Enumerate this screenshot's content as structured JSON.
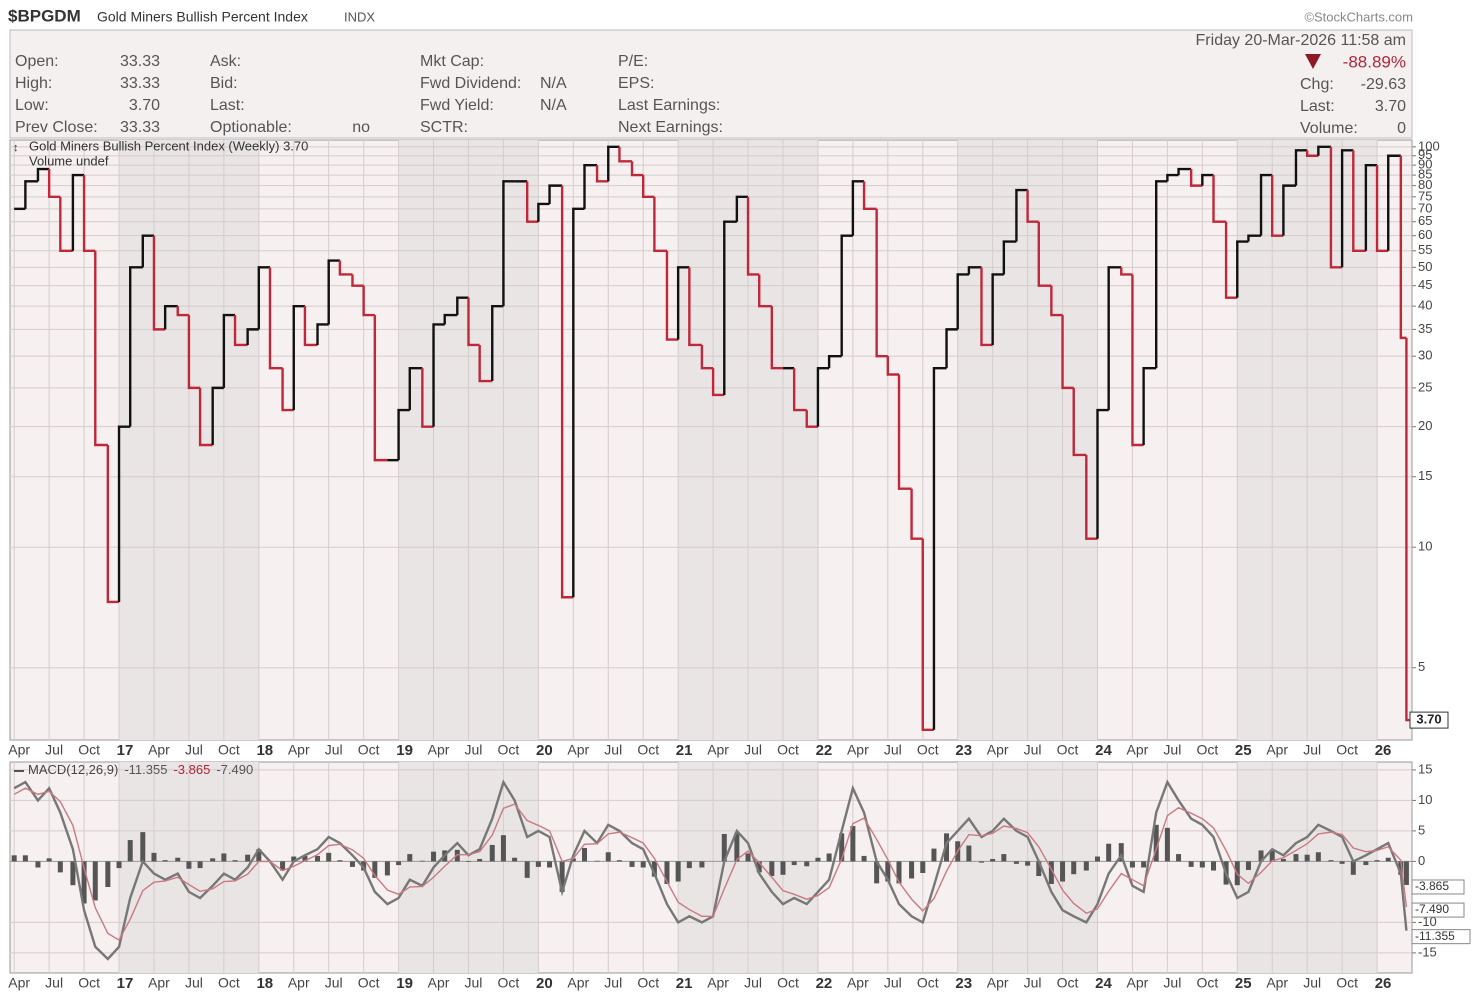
{
  "header": {
    "symbol": "$BPGDM",
    "name": "Gold Miners Bullish Percent Index",
    "exchange": "INDX",
    "source": "©StockCharts.com"
  },
  "quote": {
    "columns": [
      [
        [
          "Open:",
          "33.33"
        ],
        [
          "High:",
          "33.33"
        ],
        [
          "Low:",
          "3.70"
        ],
        [
          "Prev Close:",
          "33.33"
        ]
      ],
      [
        [
          "Ask:"
        ],
        [
          "Bid:"
        ],
        [
          "Last:"
        ],
        [
          "Optionable:",
          "no"
        ]
      ],
      [
        [
          "Mkt Cap:"
        ],
        [
          "Fwd Dividend:",
          "N/A"
        ],
        [
          "Fwd Yield:",
          "N/A"
        ],
        [
          "SCTR:"
        ]
      ],
      [
        [
          "P/E:"
        ],
        [
          "EPS:"
        ],
        [
          "Last Earnings:"
        ],
        [
          "Next Earnings:"
        ]
      ]
    ],
    "date": "Friday  20-Mar-2026  11:58 am",
    "change_pct": "-88.89%",
    "stats": [
      [
        "Chg:",
        "-29.63"
      ],
      [
        "Last:",
        "3.70"
      ],
      [
        "Volume:",
        "0"
      ]
    ]
  },
  "chart_data": [
    {
      "type": "step-line",
      "volume_label": "Volume undef",
      "log_scale": true,
      "grid": true,
      "price_tag": "3.70",
      "x": [
        2016.25,
        2016.33,
        2016.42,
        2016.5,
        2016.58,
        2016.67,
        2016.75,
        2016.83,
        2016.92,
        2017.0,
        2017.08,
        2017.17,
        2017.25,
        2017.33,
        2017.42,
        2017.5,
        2017.58,
        2017.67,
        2017.75,
        2017.83,
        2017.92,
        2018.0,
        2018.08,
        2018.17,
        2018.25,
        2018.33,
        2018.42,
        2018.5,
        2018.58,
        2018.67,
        2018.75,
        2018.83,
        2018.92,
        2019.0,
        2019.08,
        2019.17,
        2019.25,
        2019.33,
        2019.42,
        2019.5,
        2019.58,
        2019.67,
        2019.75,
        2019.83,
        2019.92,
        2020.0,
        2020.08,
        2020.17,
        2020.25,
        2020.33,
        2020.42,
        2020.5,
        2020.58,
        2020.67,
        2020.75,
        2020.83,
        2020.92,
        2021.0,
        2021.08,
        2021.17,
        2021.25,
        2021.33,
        2021.42,
        2021.5,
        2021.58,
        2021.67,
        2021.75,
        2021.83,
        2021.92,
        2022.0,
        2022.08,
        2022.17,
        2022.25,
        2022.33,
        2022.42,
        2022.5,
        2022.58,
        2022.67,
        2022.75,
        2022.83,
        2022.92,
        2023.0,
        2023.08,
        2023.17,
        2023.25,
        2023.33,
        2023.42,
        2023.5,
        2023.58,
        2023.67,
        2023.75,
        2023.83,
        2023.92,
        2024.0,
        2024.08,
        2024.17,
        2024.25,
        2024.33,
        2024.42,
        2024.5,
        2024.58,
        2024.67,
        2024.75,
        2024.83,
        2024.92,
        2025.0,
        2025.08,
        2025.17,
        2025.25,
        2025.33,
        2025.42,
        2025.5,
        2025.58,
        2025.67,
        2025.75,
        2025.83,
        2025.92,
        2026.0,
        2026.08,
        2026.17,
        2026.21
      ],
      "series": [
        {
          "name": "Gold Miners Bullish Percent Index (Weekly) 3.70",
          "up_color": "#111111",
          "down_color": "#c0283a",
          "values": [
            70,
            82,
            88,
            75,
            55,
            85,
            55,
            18,
            7.3,
            20,
            50,
            60,
            35,
            40,
            38,
            25,
            18,
            25,
            38,
            32,
            35,
            50,
            28,
            22,
            40,
            32,
            36,
            52,
            48,
            45,
            38,
            16.5,
            16.5,
            22,
            28,
            20,
            36,
            38,
            42,
            32,
            26,
            40,
            82,
            82,
            65,
            72,
            80,
            7.5,
            70,
            90,
            82,
            100,
            92,
            85,
            75,
            55,
            33,
            50,
            32,
            28,
            24,
            65,
            75,
            48,
            40,
            28,
            28,
            22,
            20,
            28,
            30,
            60,
            82,
            70,
            30,
            27,
            14,
            10.5,
            3.5,
            28,
            35,
            48,
            50,
            32,
            48,
            58,
            78,
            65,
            45,
            38,
            25,
            17,
            10.5,
            22,
            50,
            48,
            18,
            28,
            82,
            85,
            88,
            80,
            85,
            65,
            42,
            58,
            60,
            85,
            60,
            80,
            98,
            95,
            100,
            50,
            98,
            55,
            90,
            55,
            95,
            33.33,
            3.7
          ]
        }
      ],
      "xlim": [
        2016.22,
        2026.25
      ],
      "ylim": [
        3.3,
        104
      ],
      "yticks": [
        5,
        10,
        15,
        20,
        25,
        30,
        35,
        40,
        45,
        50,
        55,
        60,
        65,
        70,
        75,
        80,
        85,
        90,
        95,
        100
      ],
      "xticks": [
        {
          "value": 2016.25,
          "label": "Apr"
        },
        {
          "value": 2016.5,
          "label": "Jul"
        },
        {
          "value": 2016.75,
          "label": "Oct"
        },
        {
          "value": 2017,
          "label": "17"
        },
        {
          "value": 2017.25,
          "label": "Apr"
        },
        {
          "value": 2017.5,
          "label": "Jul"
        },
        {
          "value": 2017.75,
          "label": "Oct"
        },
        {
          "value": 2018,
          "label": "18"
        },
        {
          "value": 2018.25,
          "label": "Apr"
        },
        {
          "value": 2018.5,
          "label": "Jul"
        },
        {
          "value": 2018.75,
          "label": "Oct"
        },
        {
          "value": 2019,
          "label": "19"
        },
        {
          "value": 2019.25,
          "label": "Apr"
        },
        {
          "value": 2019.5,
          "label": "Jul"
        },
        {
          "value": 2019.75,
          "label": "Oct"
        },
        {
          "value": 2020,
          "label": "20"
        },
        {
          "value": 2020.25,
          "label": "Apr"
        },
        {
          "value": 2020.5,
          "label": "Jul"
        },
        {
          "value": 2020.75,
          "label": "Oct"
        },
        {
          "value": 2021,
          "label": "21"
        },
        {
          "value": 2021.25,
          "label": "Apr"
        },
        {
          "value": 2021.5,
          "label": "Jul"
        },
        {
          "value": 2021.75,
          "label": "Oct"
        },
        {
          "value": 2022,
          "label": "22"
        },
        {
          "value": 2022.25,
          "label": "Apr"
        },
        {
          "value": 2022.5,
          "label": "Jul"
        },
        {
          "value": 2022.75,
          "label": "Oct"
        },
        {
          "value": 2023,
          "label": "23"
        },
        {
          "value": 2023.25,
          "label": "Apr"
        },
        {
          "value": 2023.5,
          "label": "Jul"
        },
        {
          "value": 2023.75,
          "label": "Oct"
        },
        {
          "value": 2024,
          "label": "24"
        },
        {
          "value": 2024.25,
          "label": "Apr"
        },
        {
          "value": 2024.5,
          "label": "Jul"
        },
        {
          "value": 2024.75,
          "label": "Oct"
        },
        {
          "value": 2025,
          "label": "25"
        },
        {
          "value": 2025.25,
          "label": "Apr"
        },
        {
          "value": 2025.5,
          "label": "Jul"
        },
        {
          "value": 2025.75,
          "label": "Oct"
        },
        {
          "value": 2026,
          "label": "26"
        }
      ]
    },
    {
      "type": "macd",
      "label": "MACD(12,26,9)",
      "grid": true,
      "ylim": [
        -18.3,
        16.3
      ],
      "yticks": [
        15,
        10,
        5,
        0,
        -10,
        -15
      ],
      "series": [
        {
          "color": "#777777",
          "tag": "-11.355",
          "values": [
            12,
            13,
            10,
            12,
            8,
            2,
            -8,
            -14,
            -16,
            -14,
            -6,
            0,
            -2,
            -3,
            -2,
            -5,
            -6,
            -4,
            -2,
            -3,
            -1,
            2,
            0,
            -3,
            0,
            1,
            2,
            4,
            3,
            1,
            -1,
            -5,
            -7,
            -6,
            -3,
            -4,
            -1,
            1,
            3,
            1,
            2,
            7,
            13,
            10,
            4,
            5,
            4,
            -5,
            1,
            5,
            3,
            6,
            5,
            3,
            2,
            -2,
            -7,
            -10,
            -9,
            -10,
            -9,
            0,
            5,
            3,
            -2,
            -5,
            -7,
            -6,
            -7,
            -5,
            -3,
            5,
            12,
            8,
            0,
            -3,
            -7,
            -9,
            -10,
            -4,
            3,
            5,
            7,
            4,
            5,
            7,
            5,
            4,
            0,
            -5,
            -8,
            -9,
            -10,
            -7,
            -2,
            1,
            -4,
            -5,
            8,
            13,
            10,
            7,
            6,
            4,
            -2,
            -6,
            -5,
            0,
            2,
            1,
            3,
            4,
            6,
            5,
            4,
            0,
            1,
            2,
            3,
            -2,
            -11.355
          ]
        },
        {
          "color": "#555555",
          "tag": "-3.865",
          "bars": true,
          "values": [
            1,
            1,
            -1,
            0.5,
            -1.8,
            -3.9,
            -6.9,
            -6.4,
            -4.2,
            -1.1,
            3.5,
            4.8,
            1.4,
            0.2,
            0.6,
            -1.2,
            -1.1,
            0.5,
            1.3,
            0.2,
            1.1,
            2,
            0,
            -1.5,
            0.8,
            0.9,
            0.9,
            1.4,
            0.2,
            -0.9,
            -1.5,
            -2.7,
            -2.3,
            -0.6,
            1.2,
            0.1,
            1.6,
            1.8,
            1.9,
            -0.1,
            0.4,
            2.7,
            4.3,
            0.6,
            -2.7,
            -0.9,
            -1,
            -5,
            0.5,
            2.2,
            0.1,
            1.5,
            0.2,
            -0.9,
            -1,
            -2.5,
            -3.7,
            -3.3,
            -1.1,
            -1,
            0,
            4.5,
            4.7,
            1.3,
            -1.8,
            -2.4,
            -2.2,
            -0.6,
            -0.8,
            0.6,
            1.3,
            4.6,
            5.8,
            0.9,
            -3.6,
            -3.3,
            -3.6,
            -2.8,
            -1.9,
            2.1,
            4.6,
            3.3,
            2.6,
            -0.2,
            0.4,
            1.2,
            -0.4,
            -0.7,
            -2.4,
            -3.7,
            -3.3,
            -2.1,
            -1.5,
            0.8,
            2.9,
            3,
            -1,
            -1,
            6,
            5.5,
            1.2,
            -0.9,
            -1,
            -1.5,
            -3.8,
            -3.9,
            -1.4,
            1.8,
            1.9,
            0.4,
            1.2,
            1.1,
            1.5,
            0.2,
            -0.4,
            -2.2,
            -0.6,
            0.2,
            0.6,
            -2.2,
            -3.865
          ]
        },
        {
          "color": "#c97a80",
          "tag": "-7.490",
          "values": [
            11,
            12,
            11,
            11.5,
            9.8,
            5.9,
            -1.1,
            -7.6,
            -11.8,
            -12.9,
            -9.5,
            -4.8,
            -3.4,
            -3.2,
            -2.6,
            -3.8,
            -4.9,
            -4.5,
            -3.3,
            -3.2,
            -2.1,
            0,
            0,
            -1.5,
            -0.8,
            0.1,
            1.1,
            2.6,
            2.8,
            1.9,
            0.5,
            -2.3,
            -4.7,
            -5.4,
            -4.2,
            -4.1,
            -2.6,
            -0.8,
            1.1,
            1.1,
            1.6,
            4.3,
            8.7,
            9.4,
            6.7,
            5.9,
            5,
            0,
            0.5,
            2.8,
            2.9,
            4.5,
            4.8,
            3.9,
            3,
            0.5,
            -3.3,
            -6.7,
            -7.9,
            -9,
            -9,
            -4.5,
            0.3,
            1.7,
            -0.2,
            -2.6,
            -4.8,
            -5.4,
            -6.2,
            -5.6,
            -4.3,
            0.4,
            6.2,
            7.1,
            3.6,
            0.3,
            -3.4,
            -6.2,
            -8.1,
            -6.1,
            -1.6,
            1.7,
            4.4,
            4.2,
            4.6,
            5.8,
            5.4,
            4.7,
            2.4,
            -1.3,
            -4.7,
            -6.9,
            -8.5,
            -7.8,
            -4.9,
            -2,
            -3,
            -4,
            2,
            7.5,
            8.8,
            7.9,
            7,
            5.5,
            1.8,
            -2.1,
            -3.6,
            -1.8,
            0.1,
            0.6,
            1.8,
            2.9,
            4.5,
            4.8,
            4.4,
            2.2,
            1.6,
            1.8,
            2.4,
            0.2,
            -7.49
          ]
        }
      ]
    }
  ]
}
